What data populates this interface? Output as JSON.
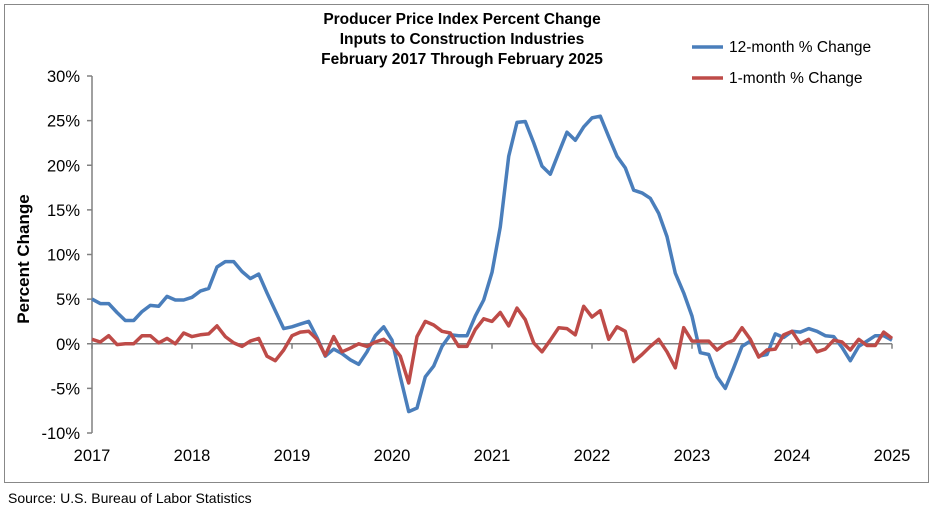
{
  "chart_data": {
    "type": "line",
    "title": [
      "Producer Price Index Percent Change",
      "Inputs to Construction Industries",
      "February 2017 Through February 2025"
    ],
    "xlabel": "",
    "ylabel": "Percent Change",
    "ylim": [
      -10,
      30
    ],
    "yticks": [
      "-10%",
      "-5%",
      "0%",
      "5%",
      "10%",
      "15%",
      "20%",
      "25%",
      "30%"
    ],
    "xticks": [
      "2017",
      "2018",
      "2019",
      "2020",
      "2021",
      "2022",
      "2023",
      "2024",
      "2025"
    ],
    "x_range": [
      "2017-02",
      "2025-02"
    ],
    "frequency": "monthly",
    "grid": false,
    "legend_position": "top-right",
    "series": [
      {
        "name": "12-month % Change",
        "color": "#4a7ebb",
        "values": [
          5.0,
          4.5,
          4.5,
          3.5,
          2.6,
          2.6,
          3.6,
          4.3,
          4.2,
          5.3,
          4.9,
          4.9,
          5.2,
          5.9,
          6.2,
          8.6,
          9.2,
          9.2,
          8.1,
          7.3,
          7.8,
          5.7,
          3.7,
          1.7,
          1.9,
          2.2,
          2.5,
          0.7,
          -1.4,
          -0.6,
          -1.1,
          -1.8,
          -2.3,
          -0.9,
          0.9,
          1.9,
          0.4,
          -3.7,
          -7.6,
          -7.2,
          -3.7,
          -2.5,
          -0.3,
          1.0,
          0.9,
          0.9,
          3.1,
          4.9,
          8.0,
          13.1,
          21.0,
          24.8,
          24.9,
          22.5,
          19.9,
          19.0,
          21.4,
          23.7,
          22.8,
          24.3,
          25.3,
          25.5,
          23.2,
          21.0,
          19.7,
          17.2,
          16.9,
          16.3,
          14.6,
          12.0,
          7.9,
          5.7,
          3.1,
          -1.0,
          -1.2,
          -3.7,
          -5.0,
          -2.7,
          -0.3,
          0.3,
          -1.4,
          -1.2,
          1.1,
          0.7,
          1.4,
          1.3,
          1.7,
          1.4,
          0.9,
          0.8,
          -0.4,
          -1.9,
          -0.3,
          0.3,
          0.9,
          0.9,
          0.4
        ]
      },
      {
        "name": "1-month % Change",
        "color": "#be4b48",
        "values": [
          0.5,
          0.2,
          0.9,
          -0.1,
          0.0,
          0.0,
          0.9,
          0.9,
          0.1,
          0.6,
          0.0,
          1.2,
          0.8,
          1.0,
          1.1,
          2.0,
          0.8,
          0.1,
          -0.3,
          0.3,
          0.6,
          -1.4,
          -1.9,
          -0.7,
          0.9,
          1.3,
          1.4,
          0.5,
          -1.3,
          0.8,
          -0.9,
          -0.5,
          0.0,
          -0.3,
          0.2,
          0.5,
          -0.2,
          -1.4,
          -4.4,
          0.8,
          2.5,
          2.1,
          1.4,
          1.2,
          -0.3,
          -0.3,
          1.6,
          2.8,
          2.5,
          3.5,
          2.0,
          4.0,
          2.7,
          0.1,
          -0.9,
          0.4,
          1.8,
          1.7,
          1.0,
          4.2,
          3.0,
          3.7,
          0.5,
          1.9,
          1.4,
          -2.0,
          -1.2,
          -0.3,
          0.5,
          -0.9,
          -2.7,
          1.8,
          0.3,
          0.3,
          0.3,
          -0.7,
          0.0,
          0.4,
          1.8,
          0.5,
          -1.5,
          -0.7,
          -0.6,
          1.0,
          1.4,
          0.0,
          0.5,
          -0.9,
          -0.6,
          0.4,
          0.2,
          -0.7,
          0.5,
          -0.2,
          -0.2,
          1.3,
          0.6
        ]
      }
    ]
  },
  "source": "Source: U.S. Bureau of Labor Statistics"
}
